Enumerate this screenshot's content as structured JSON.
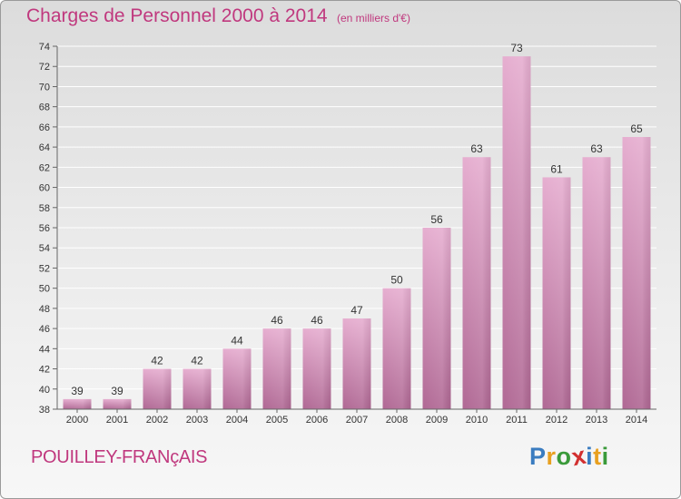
{
  "title": "Charges de Personnel 2000 à 2014",
  "unit": "(en milliers d'€)",
  "commune": "POUILLEY-FRANçAIS",
  "logo": {
    "letters": [
      "P",
      "r",
      "o",
      "x",
      "i",
      "t",
      "i"
    ],
    "colors": [
      "#3a7cc0",
      "#e8a020",
      "#3a9a3a",
      "#d23030",
      "#3a7cc0",
      "#e8a020",
      "#3a9a3a"
    ]
  },
  "colors": {
    "bar": "#d68ab3",
    "text": "#c0387e"
  },
  "chart_data": {
    "type": "bar",
    "title": "Charges de Personnel 2000 à 2014",
    "ylabel": "(en milliers d'€)",
    "xlabel": "",
    "categories": [
      "2000",
      "2001",
      "2002",
      "2003",
      "2004",
      "2005",
      "2006",
      "2007",
      "2008",
      "2009",
      "2010",
      "2011",
      "2012",
      "2013",
      "2014"
    ],
    "values": [
      39,
      39,
      42,
      42,
      44,
      46,
      46,
      47,
      50,
      56,
      63,
      73,
      61,
      63,
      65
    ],
    "ylim": [
      38,
      74
    ],
    "yticks": [
      38,
      40,
      42,
      44,
      46,
      48,
      50,
      52,
      54,
      56,
      58,
      60,
      62,
      64,
      66,
      68,
      70,
      72,
      74
    ],
    "grid": true
  }
}
